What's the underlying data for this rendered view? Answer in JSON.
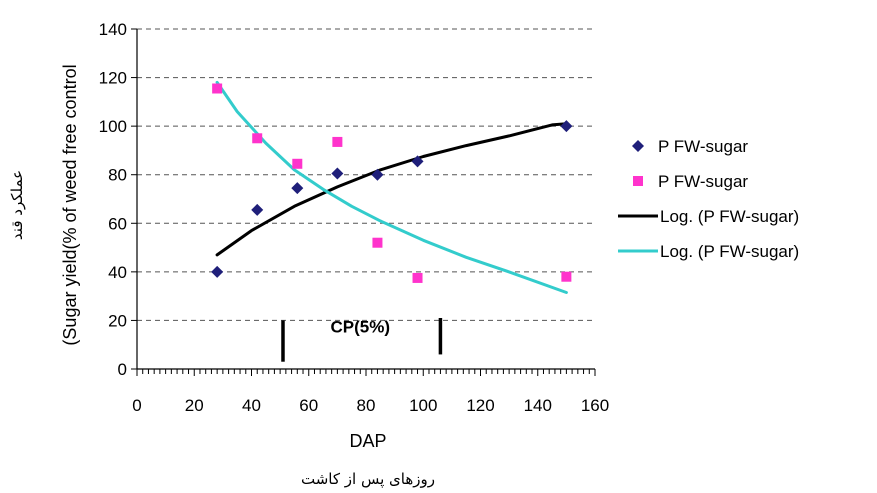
{
  "chart_data": {
    "type": "scatter",
    "xlabel": "DAP",
    "xlabel_fa": "روزهای پس از کاشت",
    "ylabel": "(Sugar yield(% of weed free control",
    "ylabel_fa": "عملکرد قند",
    "xlim": [
      0,
      160
    ],
    "ylim": [
      0,
      140
    ],
    "x_ticks": [
      "0",
      "20",
      "40",
      "60",
      "80",
      "100",
      "120",
      "140",
      "160"
    ],
    "y_ticks": [
      "0",
      "20",
      "40",
      "60",
      "80",
      "100",
      "120",
      "140"
    ],
    "grid": "horizontal-dashed",
    "legend_position": "right",
    "series": [
      {
        "name": "P FW-sugar",
        "kind": "points",
        "marker": "diamond",
        "color": "#1f1f7a",
        "x": [
          28,
          42,
          56,
          70,
          84,
          98,
          150
        ],
        "y": [
          40,
          65.5,
          74.5,
          80.5,
          80,
          85.5,
          100
        ]
      },
      {
        "name": "P FW-sugar",
        "kind": "points",
        "marker": "square",
        "color": "#ff33cc",
        "x": [
          28,
          42,
          56,
          70,
          84,
          98,
          150
        ],
        "y": [
          115.5,
          95,
          84.5,
          93.5,
          52,
          37.5,
          38
        ]
      },
      {
        "name": "Log. (P FW-sugar)",
        "kind": "trendline",
        "color": "#000000",
        "x": [
          28,
          40,
          55,
          70,
          85,
          100,
          115,
          130,
          145,
          150
        ],
        "y": [
          47,
          57,
          67,
          75,
          82,
          87.5,
          92,
          96,
          100.5,
          101
        ]
      },
      {
        "name": "Log. (P FW-sugar)",
        "kind": "trendline",
        "color": "#33cccc",
        "x": [
          28,
          35,
          45,
          55,
          65,
          75,
          85,
          100,
          115,
          130,
          150
        ],
        "y": [
          118,
          106,
          93,
          82,
          74,
          67,
          61,
          53,
          46,
          40,
          31.5
        ]
      }
    ],
    "annotations": [
      {
        "text": "CP(5%)",
        "x": 78,
        "y": 15
      }
    ],
    "markers": [
      {
        "x": 51,
        "y_from": 3,
        "y_to": 20
      },
      {
        "x": 106,
        "y_from": 6,
        "y_to": 21
      }
    ]
  }
}
